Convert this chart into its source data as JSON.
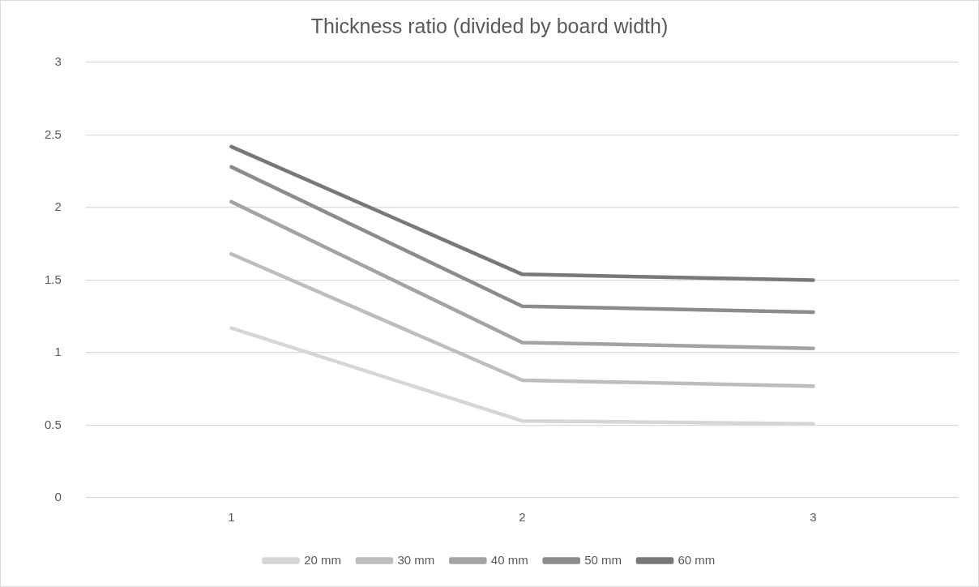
{
  "chart_data": {
    "type": "line",
    "title": "Thickness ratio (divided by board width)",
    "categories": [
      "1",
      "2",
      "3"
    ],
    "series": [
      {
        "name": "20 mm",
        "color": "#d6d6d6",
        "values": [
          1.17,
          0.53,
          0.51
        ]
      },
      {
        "name": "30 mm",
        "color": "#bdbdbd",
        "values": [
          1.68,
          0.81,
          0.77
        ]
      },
      {
        "name": "40 mm",
        "color": "#a3a3a3",
        "values": [
          2.04,
          1.07,
          1.03
        ]
      },
      {
        "name": "50 mm",
        "color": "#8c8c8c",
        "values": [
          2.28,
          1.32,
          1.28
        ]
      },
      {
        "name": "60 mm",
        "color": "#787878",
        "values": [
          2.42,
          1.54,
          1.5
        ]
      }
    ],
    "ylim": [
      0,
      3
    ],
    "yticks": [
      0,
      0.5,
      1,
      1.5,
      2,
      2.5,
      3
    ],
    "grid": "y",
    "legend": "bottom",
    "marker": "none",
    "line_style": "solid"
  }
}
